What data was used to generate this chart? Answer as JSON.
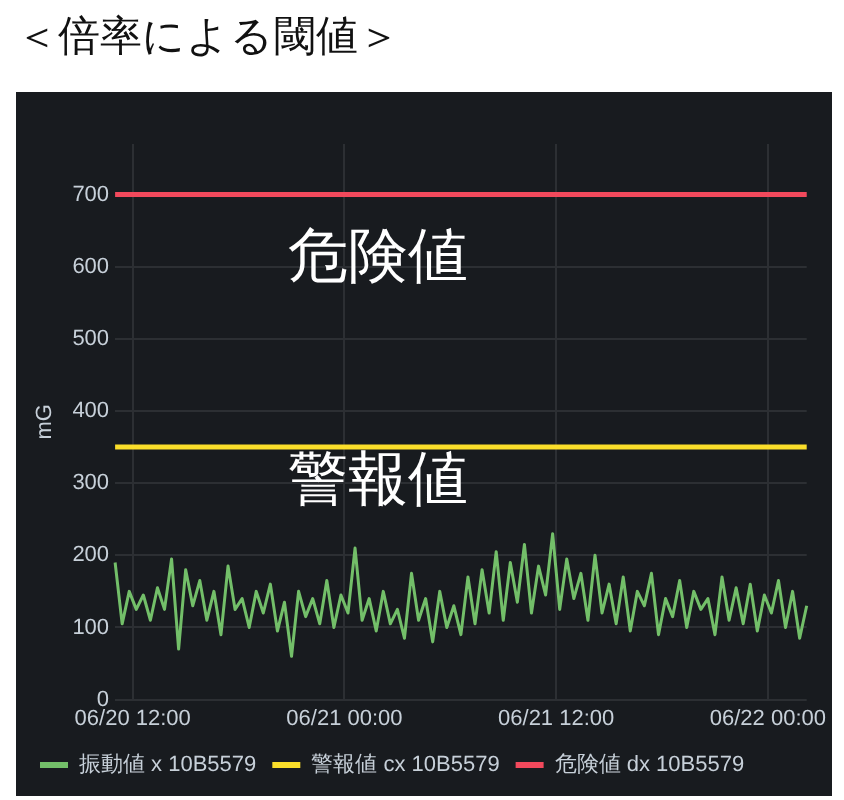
{
  "chart_data": {
    "type": "line",
    "title": "＜倍率による閾値＞",
    "ylabel": "mG",
    "xlim": [
      "--06-20T11:00",
      "--06-22T02:12"
    ],
    "ylim": [
      0,
      770
    ],
    "xticks": [
      {
        "value": "--06-20T12:00",
        "label": "06/20 12:00"
      },
      {
        "value": "--06-21T00:00",
        "label": "06/21 00:00"
      },
      {
        "value": "--06-21T12:00",
        "label": "06/21 12:00"
      },
      {
        "value": "--06-22T00:00",
        "label": "06/22 00:00"
      }
    ],
    "yticks": [
      0,
      100,
      200,
      300,
      400,
      500,
      600,
      700
    ],
    "grid": true,
    "legend": "bottom",
    "marker": "none",
    "line_style": "solid",
    "annotations": [
      "危険値",
      "警報値"
    ],
    "x": [
      "--06-20T11:00",
      "--06-20T11:24",
      "--06-20T11:48",
      "--06-20T12:12",
      "--06-20T12:36",
      "--06-20T13:00",
      "--06-20T13:24",
      "--06-20T13:48",
      "--06-20T14:12",
      "--06-20T14:36",
      "--06-20T15:00",
      "--06-20T15:24",
      "--06-20T15:48",
      "--06-20T16:12",
      "--06-20T16:36",
      "--06-20T17:00",
      "--06-20T17:24",
      "--06-20T17:48",
      "--06-20T18:12",
      "--06-20T18:36",
      "--06-20T19:00",
      "--06-20T19:24",
      "--06-20T19:48",
      "--06-20T20:12",
      "--06-20T20:36",
      "--06-20T21:00",
      "--06-20T21:24",
      "--06-20T21:48",
      "--06-20T22:12",
      "--06-20T22:36",
      "--06-20T23:00",
      "--06-20T23:24",
      "--06-20T23:48",
      "--06-21T00:12",
      "--06-21T00:36",
      "--06-21T01:00",
      "--06-21T01:24",
      "--06-21T01:48",
      "--06-21T02:12",
      "--06-21T02:36",
      "--06-21T03:00",
      "--06-21T03:24",
      "--06-21T03:48",
      "--06-21T04:12",
      "--06-21T04:36",
      "--06-21T05:00",
      "--06-21T05:24",
      "--06-21T05:48",
      "--06-21T06:12",
      "--06-21T06:36",
      "--06-21T07:00",
      "--06-21T07:24",
      "--06-21T07:48",
      "--06-21T08:12",
      "--06-21T08:36",
      "--06-21T09:00",
      "--06-21T09:24",
      "--06-21T09:48",
      "--06-21T10:12",
      "--06-21T10:36",
      "--06-21T11:00",
      "--06-21T11:24",
      "--06-21T11:48",
      "--06-21T12:12",
      "--06-21T12:36",
      "--06-21T13:00",
      "--06-21T13:24",
      "--06-21T13:48",
      "--06-21T14:12",
      "--06-21T14:36",
      "--06-21T15:00",
      "--06-21T15:24",
      "--06-21T15:48",
      "--06-21T16:12",
      "--06-21T16:36",
      "--06-21T17:00",
      "--06-21T17:24",
      "--06-21T17:48",
      "--06-21T18:12",
      "--06-21T18:36",
      "--06-21T19:00",
      "--06-21T19:24",
      "--06-21T19:48",
      "--06-21T20:12",
      "--06-21T20:36",
      "--06-21T21:00",
      "--06-21T21:24",
      "--06-21T21:48",
      "--06-21T22:12",
      "--06-21T22:36",
      "--06-21T23:00",
      "--06-21T23:24",
      "--06-21T23:48",
      "--06-22T00:12",
      "--06-22T00:36",
      "--06-22T01:00",
      "--06-22T01:24",
      "--06-22T01:48",
      "--06-22T02:12"
    ],
    "series": [
      {
        "name": "振動値 x 10B5579",
        "color": "#73bf69",
        "values": [
          190,
          105,
          150,
          125,
          145,
          110,
          155,
          125,
          195,
          70,
          180,
          130,
          165,
          110,
          150,
          90,
          185,
          125,
          140,
          100,
          150,
          120,
          160,
          95,
          135,
          60,
          150,
          115,
          140,
          105,
          165,
          100,
          145,
          120,
          210,
          110,
          140,
          95,
          150,
          105,
          125,
          85,
          175,
          110,
          140,
          80,
          150,
          100,
          130,
          90,
          170,
          105,
          180,
          120,
          205,
          110,
          190,
          135,
          215,
          120,
          185,
          145,
          230,
          125,
          195,
          140,
          175,
          110,
          200,
          120,
          160,
          105,
          170,
          95,
          150,
          130,
          175,
          90,
          140,
          115,
          165,
          100,
          150,
          125,
          140,
          90,
          170,
          110,
          155,
          105,
          160,
          95,
          145,
          120,
          165,
          100,
          150,
          85,
          130
        ]
      },
      {
        "name": "警報値 cx 10B5579",
        "color": "#fade2a",
        "x": [
          "--06-20T11:00",
          "--06-22T02:12"
        ],
        "values": [
          350,
          350
        ]
      },
      {
        "name": "危険値 dx 10B5579",
        "color": "#f2495c",
        "x": [
          "--06-20T11:00",
          "--06-22T02:12"
        ],
        "values": [
          700,
          700
        ]
      }
    ]
  }
}
